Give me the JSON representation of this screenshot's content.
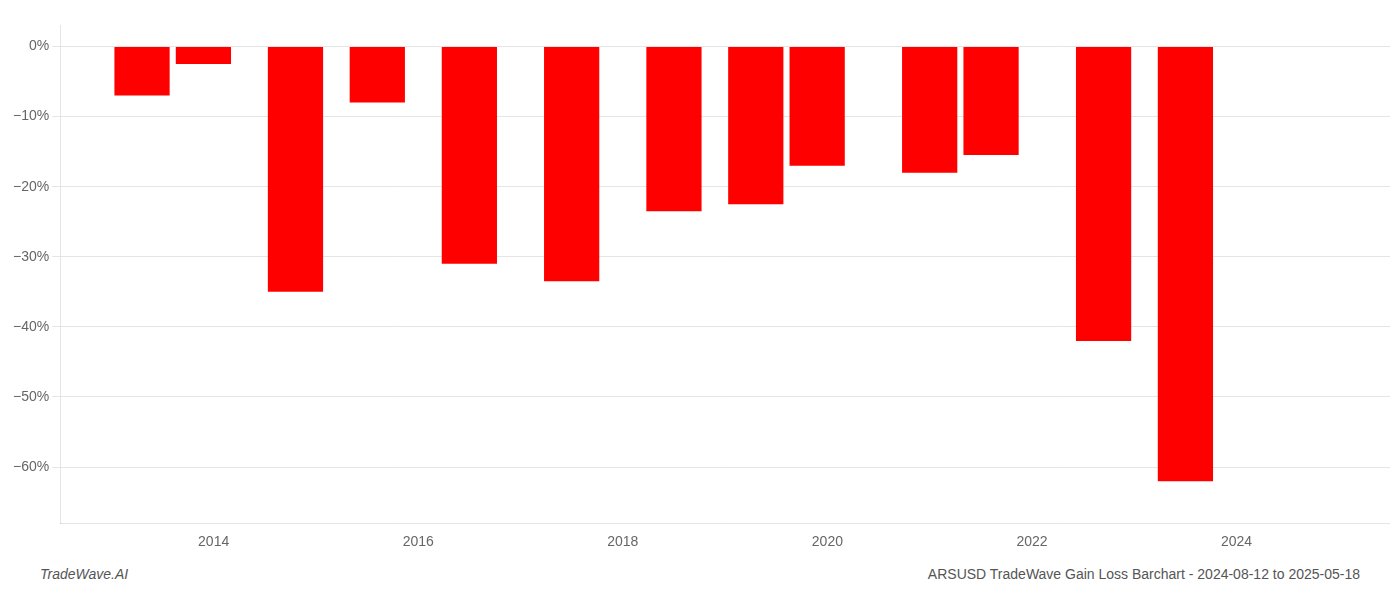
{
  "chart_data": {
    "type": "bar",
    "x": [
      2013.3,
      2013.9,
      2014.8,
      2015.6,
      2016.5,
      2017.5,
      2018.5,
      2019.3,
      2019.9,
      2021.0,
      2021.6,
      2022.7,
      2023.5
    ],
    "values": [
      -7.0,
      -2.5,
      -35.0,
      -8.0,
      -31.0,
      -33.5,
      -23.5,
      -22.5,
      -17.0,
      -18.0,
      -15.5,
      -42.0,
      -62.0
    ],
    "color": "#ff0000",
    "xlim": [
      2012.5,
      2025.5
    ],
    "xticks": [
      2014,
      2016,
      2018,
      2020,
      2022,
      2024
    ],
    "ylim": [
      -68,
      3
    ],
    "yticks": [
      {
        "value": 0,
        "label": "0%"
      },
      {
        "value": -10,
        "label": "−10%"
      },
      {
        "value": -20,
        "label": "−20%"
      },
      {
        "value": -30,
        "label": "−30%"
      },
      {
        "value": -40,
        "label": "−40%"
      },
      {
        "value": -50,
        "label": "−50%"
      },
      {
        "value": -60,
        "label": "−60%"
      }
    ],
    "grid": "y",
    "annotations": [
      "TradeWave.AI",
      "ARSUSD TradeWave Gain Loss Barchart - 2024-08-12 to 2025-05-18"
    ]
  }
}
